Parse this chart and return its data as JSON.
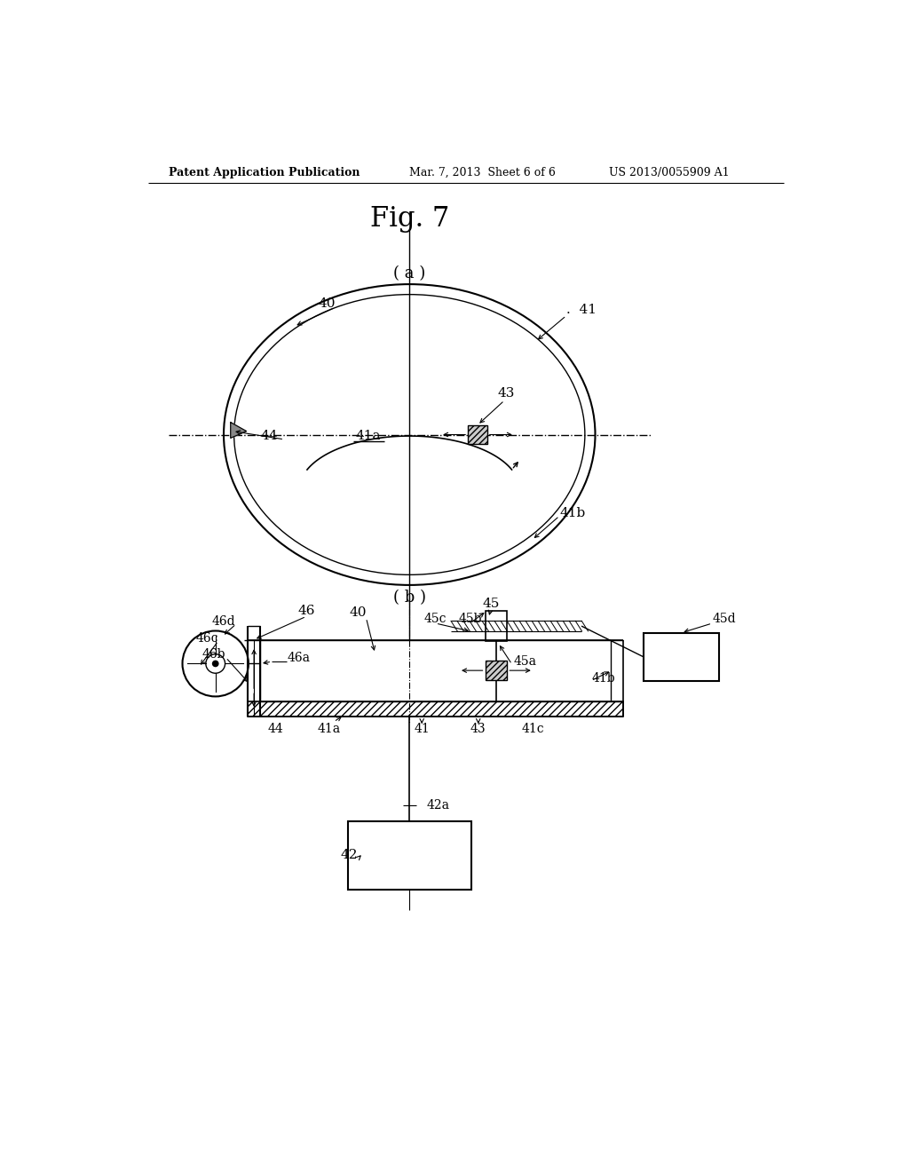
{
  "bg_color": "#ffffff",
  "header_left": "Patent Application Publication",
  "header_mid": "Mar. 7, 2013  Sheet 6 of 6",
  "header_right": "US 2013/0055909 A1",
  "fig_title": "Fig. 7",
  "sub_a": "( a )",
  "sub_b": "( b )"
}
